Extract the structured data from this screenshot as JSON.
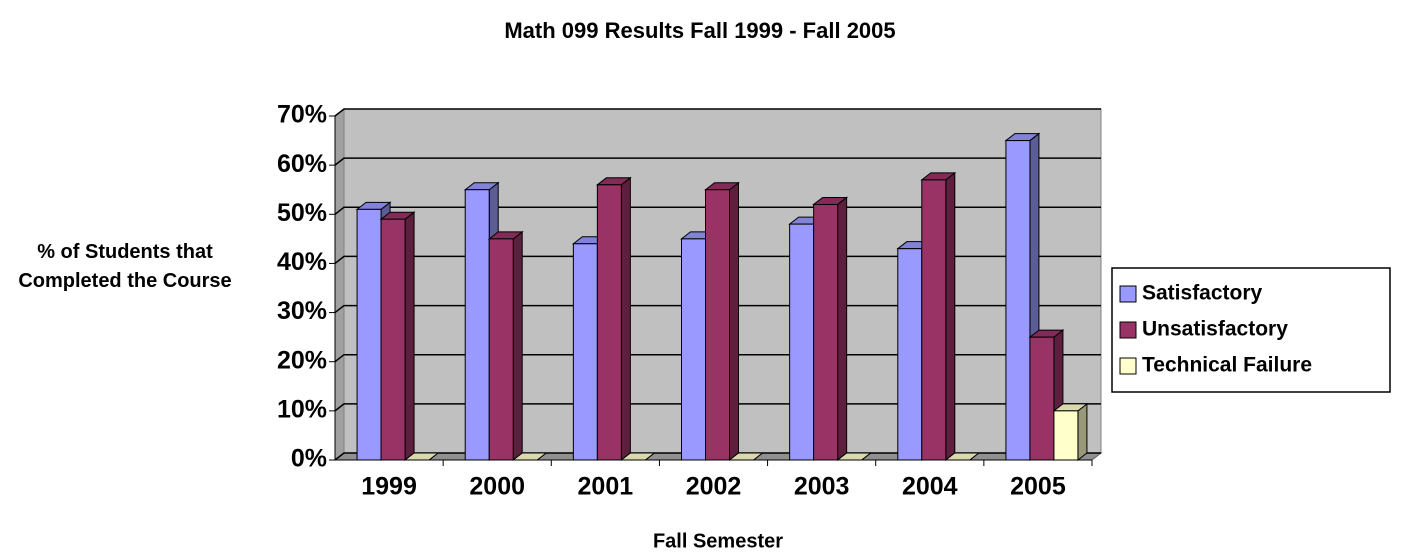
{
  "chart_data": {
    "type": "bar3d",
    "title": "Math 099 Results Fall 1999 - Fall 2005",
    "x_label": "Fall Semester",
    "y_label": "% of Students that Completed the Course",
    "categories": [
      "1999",
      "2000",
      "2001",
      "2002",
      "2003",
      "2004",
      "2005"
    ],
    "series": [
      {
        "name": "Satisfactory",
        "color": "#9999ff",
        "values": [
          51,
          55,
          44,
          45,
          48,
          43,
          65
        ]
      },
      {
        "name": "Unsatisfactory",
        "color": "#993366",
        "values": [
          49,
          45,
          56,
          55,
          52,
          57,
          25
        ]
      },
      {
        "name": "Technical Failure",
        "color": "#ffffcc",
        "values": [
          0,
          0,
          0,
          0,
          0,
          0,
          10
        ]
      }
    ],
    "ylim": [
      0,
      70
    ],
    "yticks": [
      {
        "value": 0,
        "label": "0%"
      },
      {
        "value": 10,
        "label": "10%"
      },
      {
        "value": 20,
        "label": "20%"
      },
      {
        "value": 30,
        "label": "30%"
      },
      {
        "value": 40,
        "label": "40%"
      },
      {
        "value": 50,
        "label": "50%"
      },
      {
        "value": 60,
        "label": "60%"
      },
      {
        "value": 70,
        "label": "70%"
      }
    ],
    "grid": true,
    "legend": "right"
  }
}
